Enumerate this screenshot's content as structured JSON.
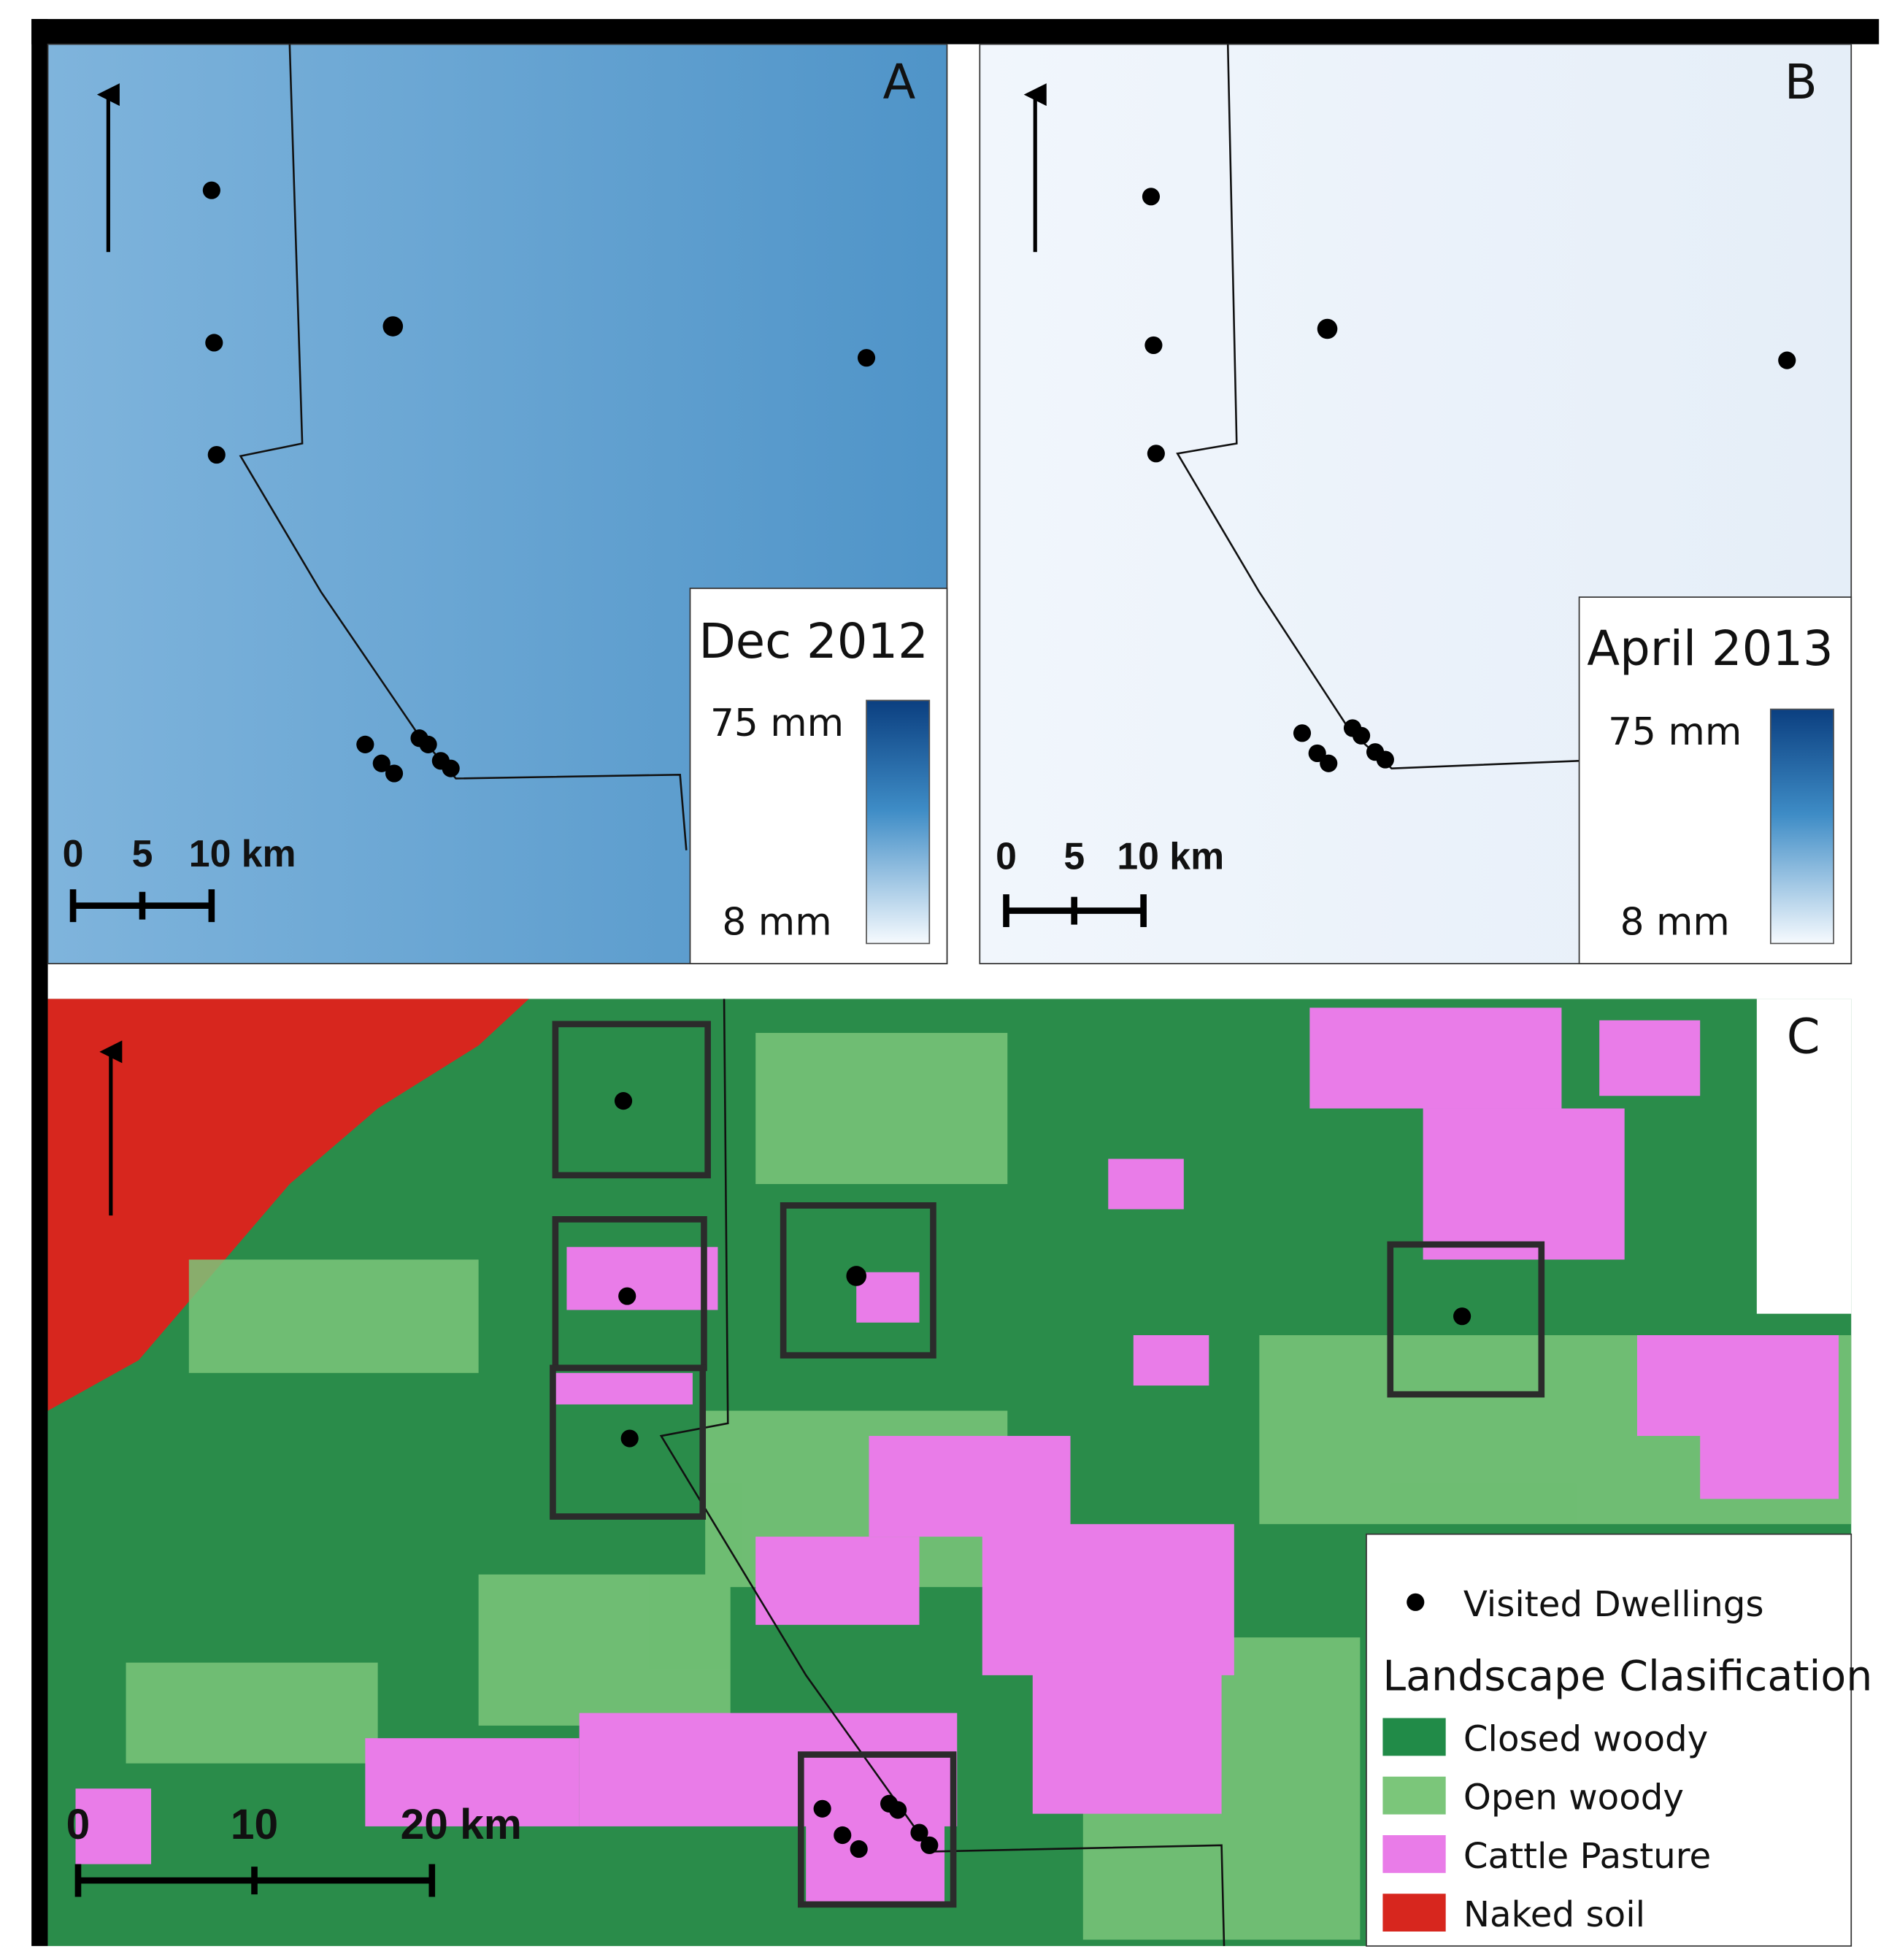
{
  "panel_a": {
    "letter": "A",
    "legend_title": "Dec 2012",
    "max_label": "75 mm",
    "min_label": "8 mm",
    "scale_labels": [
      "0",
      "5",
      "10 km"
    ]
  },
  "panel_b": {
    "letter": "B",
    "legend_title": "April 2013",
    "max_label": "75 mm",
    "min_label": "8 mm",
    "scale_labels": [
      "0",
      "5",
      "10 km"
    ]
  },
  "panel_c": {
    "letter": "C",
    "scale_labels": [
      "0",
      "10",
      "20 km"
    ],
    "legend": {
      "dwellings": "Visited Dwellings",
      "title": "Landscape Clasification",
      "items": [
        {
          "label": "Closed woody",
          "color": "#218b48"
        },
        {
          "label": "Open woody",
          "color": "#7bc67a"
        },
        {
          "label": "Cattle Pasture",
          "color": "#e97ce8"
        },
        {
          "label": "Naked soil",
          "color": "#d7261e"
        }
      ]
    }
  }
}
